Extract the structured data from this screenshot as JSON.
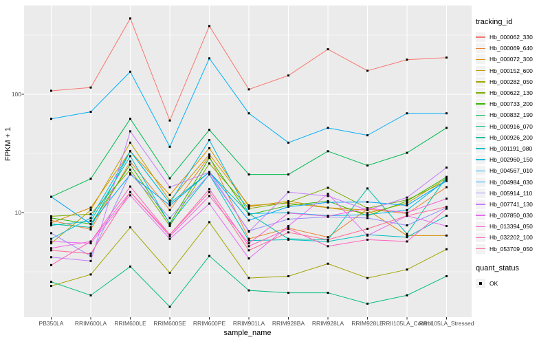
{
  "chart_data": {
    "type": "line",
    "title": "",
    "xlabel": "sample_name",
    "ylabel": "FPKM + 1",
    "x_categories": [
      "PB350LA",
      "RRIM600LA",
      "RRIM600LE",
      "RRIM600SE",
      "RRIM600PE",
      "RRIM901LA",
      "RRIM928BA",
      "RRIM928LA",
      "RRIM928LE",
      "RRII105LA_Control",
      "RRII105LA_Stressed"
    ],
    "y_scale": "log10",
    "ylim": [
      1.3,
      560
    ],
    "y_major_ticks": [
      10,
      100
    ],
    "y_major_tick_labels": [
      "10",
      "100"
    ],
    "y_minor_ticks": [
      3.162,
      31.62,
      316.2
    ],
    "grid": "on",
    "legend_position": "right",
    "point_shape": "filled-square",
    "point_color": "#000000",
    "series": [
      {
        "name": "Hb_000062_330",
        "color": "#F8766D",
        "values": [
          107,
          114,
          437,
          60,
          377,
          110,
          144,
          240,
          158,
          196,
          204
        ]
      },
      {
        "name": "Hb_000069_640",
        "color": "#EA8331",
        "values": [
          8.6,
          7.2,
          27,
          10.5,
          30,
          6.0,
          7.4,
          6.2,
          10.7,
          9.8,
          16.4
        ]
      },
      {
        "name": "Hb_000072_300",
        "color": "#D89000",
        "values": [
          8.2,
          11.0,
          33,
          14.1,
          35,
          11.2,
          12.5,
          11.0,
          10.5,
          6.4,
          6.4
        ]
      },
      {
        "name": "Hb_000152_600",
        "color": "#C09B00",
        "values": [
          5.5,
          10.5,
          39,
          12.6,
          31,
          11.5,
          12.0,
          11.0,
          9.9,
          12.0,
          19.5
        ]
      },
      {
        "name": "Hb_000282_050",
        "color": "#A3A500",
        "values": [
          2.4,
          3.0,
          7.5,
          3.1,
          8.3,
          2.8,
          2.9,
          3.7,
          2.8,
          3.3,
          4.9
        ]
      },
      {
        "name": "Hb_000622_130",
        "color": "#7CAE00",
        "values": [
          9.3,
          9.7,
          23,
          7.7,
          26,
          10.8,
          12.2,
          16.2,
          10.9,
          12.8,
          18.5
        ]
      },
      {
        "name": "Hb_000733_200",
        "color": "#39B600",
        "values": [
          9.0,
          8.0,
          25.5,
          8.1,
          29,
          9.6,
          11.5,
          12.5,
          9.4,
          12.5,
          20
        ]
      },
      {
        "name": "Hb_000832_190",
        "color": "#00BB4E",
        "values": [
          13.6,
          19.3,
          62,
          19.5,
          50,
          21,
          21,
          33,
          25,
          32,
          52
        ]
      },
      {
        "name": "Hb_000916_070",
        "color": "#00BF7D",
        "values": [
          2.6,
          2.0,
          3.5,
          1.6,
          4.3,
          2.2,
          2.1,
          2.1,
          1.7,
          2.0,
          2.9
        ]
      },
      {
        "name": "Hb_000926_200",
        "color": "#00C1A3",
        "values": [
          8.0,
          7.5,
          33,
          12.0,
          22,
          9.8,
          6.0,
          5.9,
          16.0,
          6.6,
          20
        ]
      },
      {
        "name": "Hb_001191_080",
        "color": "#00BFC4",
        "values": [
          7.8,
          8.5,
          30,
          8.0,
          21,
          5.8,
          5.9,
          5.7,
          6.5,
          6.2,
          9.4
        ]
      },
      {
        "name": "Hb_002960_150",
        "color": "#00BAE0",
        "values": [
          6.0,
          9.0,
          33,
          12.0,
          41,
          9.8,
          10.0,
          9.4,
          9.6,
          10.5,
          19
        ]
      },
      {
        "name": "Hb_004567_010",
        "color": "#00B0F6",
        "values": [
          62,
          71,
          155,
          36,
          201,
          69,
          39,
          52,
          45,
          69,
          69
        ]
      },
      {
        "name": "Hb_004984_030",
        "color": "#00A5FF",
        "values": [
          13.6,
          8.0,
          21,
          11.5,
          22,
          8.6,
          11.2,
          12.2,
          12.3,
          11.5,
          18.5
        ]
      },
      {
        "name": "Hb_005914_110",
        "color": "#9590FF",
        "values": [
          6.7,
          4.3,
          21.5,
          9.0,
          21,
          7.0,
          8.8,
          9.2,
          9.0,
          7.8,
          11.0
        ]
      },
      {
        "name": "Hb_007741_130",
        "color": "#C77CFF",
        "values": [
          4.2,
          3.9,
          48.6,
          16.4,
          22,
          6.9,
          14.9,
          13.8,
          10.5,
          13.4,
          24
        ]
      },
      {
        "name": "Hb_007850_030",
        "color": "#E76BF3",
        "values": [
          5.7,
          5.5,
          14.0,
          6.0,
          11.9,
          4.1,
          7.7,
          14.4,
          6.4,
          9.4,
          7.7
        ]
      },
      {
        "name": "Hb_013394_050",
        "color": "#FA62DB",
        "values": [
          5.0,
          5.7,
          14.9,
          6.3,
          13.8,
          5.5,
          9.9,
          9.3,
          10.9,
          10.0,
          13.1
        ]
      },
      {
        "name": "Hb_032202_100",
        "color": "#FF62BC",
        "values": [
          3.6,
          5.7,
          16.6,
          6.5,
          15.8,
          5.2,
          7.3,
          5.2,
          5.9,
          5.7,
          10.8
        ]
      },
      {
        "name": "Hb_053709_050",
        "color": "#FF6A98",
        "values": [
          4.8,
          4.5,
          14.9,
          6.5,
          14.9,
          4.8,
          6.8,
          5.9,
          7.3,
          9.4,
          11.2
        ]
      }
    ]
  },
  "legend": {
    "tracking_title": "tracking_id",
    "quant_title": "quant_status",
    "quant_value": "OK"
  },
  "colors": {
    "panel_bg": "#EBEBEB",
    "grid": "#FFFFFF",
    "axis_text": "#4D4D4D",
    "tick_mark": "#333333",
    "legend_key_bg": "#F2F2F2",
    "point": "#000000"
  }
}
